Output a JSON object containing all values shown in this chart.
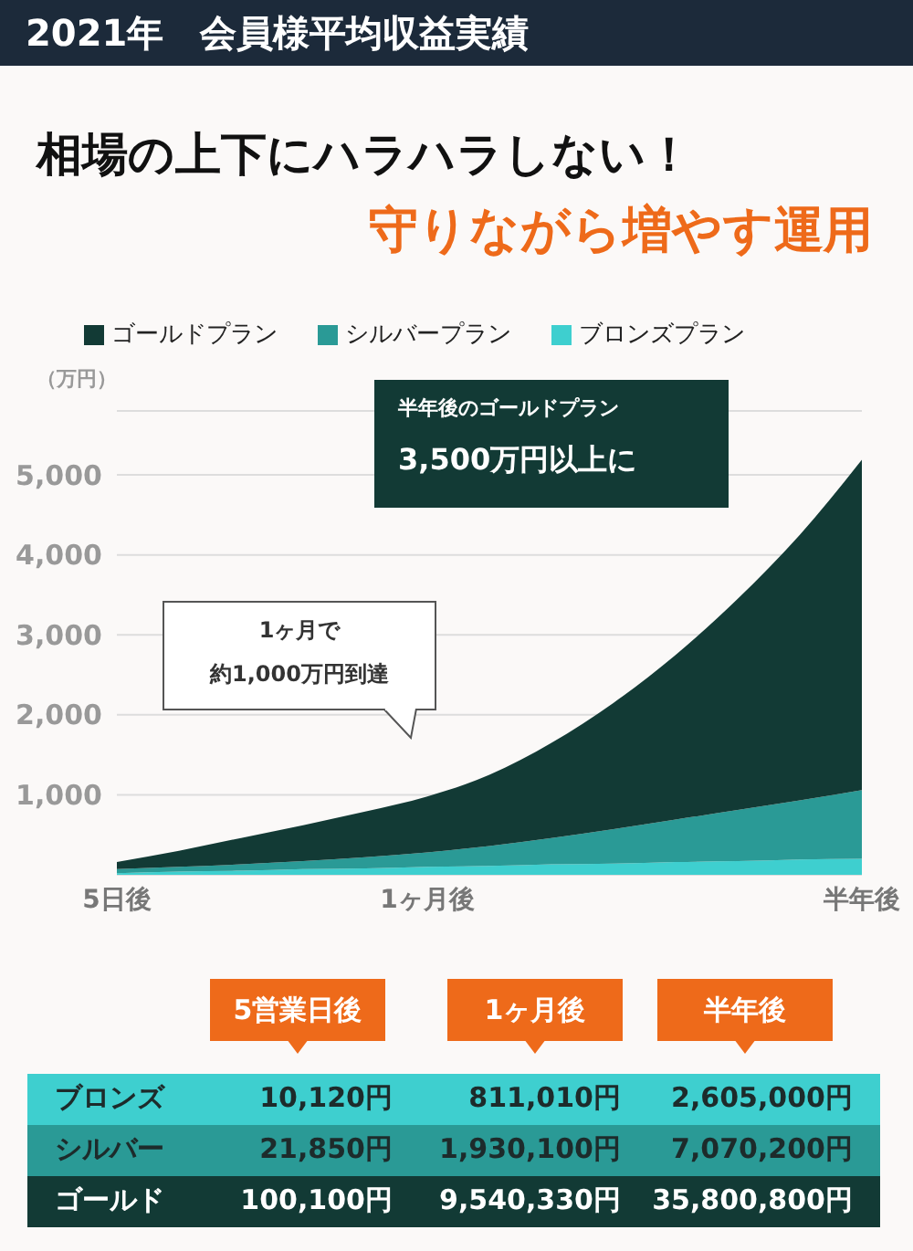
{
  "chart_data": {
    "type": "area",
    "title": "2021年　会員様平均収益実績",
    "subtitle": "相場の上下にハラハラしない！",
    "ylabel": "（万円）",
    "categories": [
      "5日後",
      null,
      null,
      null,
      null,
      "1ヶ月後",
      null,
      null,
      null,
      null,
      null,
      null,
      "半年後"
    ],
    "stacked": true,
    "series": [
      {
        "name": "ブロンズプラン",
        "color": "#3ecfcf",
        "values": [
          20,
          40,
          50,
          70,
          80,
          100,
          110,
          130,
          140,
          160,
          170,
          190,
          200
        ]
      },
      {
        "name": "シルバープラン",
        "color": "#2a9a96",
        "values": [
          50,
          60,
          80,
          100,
          140,
          180,
          250,
          330,
          430,
          530,
          640,
          740,
          860
        ]
      },
      {
        "name": "ゴールドプラン",
        "color": "#123a35",
        "values": [
          90,
          200,
          330,
          450,
          570,
          700,
          890,
          1190,
          1580,
          2060,
          2640,
          3320,
          4130
        ]
      }
    ],
    "ylim": [
      0,
      5800
    ],
    "yticks": [
      {
        "value": 1000,
        "label": "1,000"
      },
      {
        "value": 2000,
        "label": "2,000"
      },
      {
        "value": 3000,
        "label": "3,000"
      },
      {
        "value": 4000,
        "label": "4,000"
      },
      {
        "value": 5000,
        "label": "5,000"
      }
    ],
    "grid": "y",
    "legend": "top",
    "annotations": [
      "守りながら増やす運用",
      "半年後のゴールドプラン",
      "3,500万円以上に",
      "1ヶ月で",
      "約1,000万円到達",
      "5営業日後",
      "1ヶ月後",
      "半年後",
      "ブロンズ",
      "シルバー",
      "ゴールド",
      "10,120円",
      "811,010円",
      "2,605,000円",
      "21,850円",
      "1,930,100円",
      "7,070,200円",
      "100,100円",
      "9,540,330円",
      "35,800,800円"
    ]
  }
}
